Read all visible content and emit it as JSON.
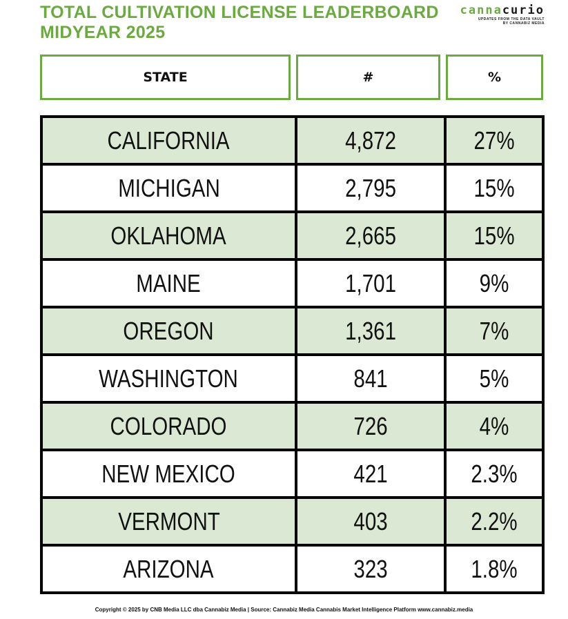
{
  "title": {
    "line1": "TOTAL CULTIVATION LICENSE LEADERBOARD",
    "line2": "MIDYEAR 2025",
    "color": "#6aaa3f"
  },
  "logo": {
    "word_part1": "canna",
    "word_part2": "curio",
    "tagline": "UPDATES FROM THE DATA VAULT",
    "byline": "BY CANNABIZ MEDIA"
  },
  "table": {
    "headers": [
      "STATE",
      "#",
      "%"
    ],
    "rows": [
      {
        "state": "CALIFORNIA",
        "count": "4,872",
        "pct": "27%"
      },
      {
        "state": "MICHIGAN",
        "count": "2,795",
        "pct": "15%"
      },
      {
        "state": "OKLAHOMA",
        "count": "2,665",
        "pct": "15%"
      },
      {
        "state": "MAINE",
        "count": "1,701",
        "pct": "9%"
      },
      {
        "state": "OREGON",
        "count": "1,361",
        "pct": "7%"
      },
      {
        "state": "WASHINGTON",
        "count": "841",
        "pct": "5%"
      },
      {
        "state": "COLORADO",
        "count": "726",
        "pct": "4%"
      },
      {
        "state": "NEW MEXICO",
        "count": "421",
        "pct": "2.3%"
      },
      {
        "state": "VERMONT",
        "count": "403",
        "pct": "2.2%"
      },
      {
        "state": "ARIZONA",
        "count": "323",
        "pct": "1.8%"
      }
    ],
    "shade_color": "#dbe8d4",
    "border_color": "#000000",
    "header_border_color": "#6aaa3f"
  },
  "footer": {
    "text": "Copyright © 2025 by CNB Media LLC dba Cannabiz Media | Source: Cannabiz Media Cannabis Market Intelligence Platform  www.cannabiz.media"
  }
}
